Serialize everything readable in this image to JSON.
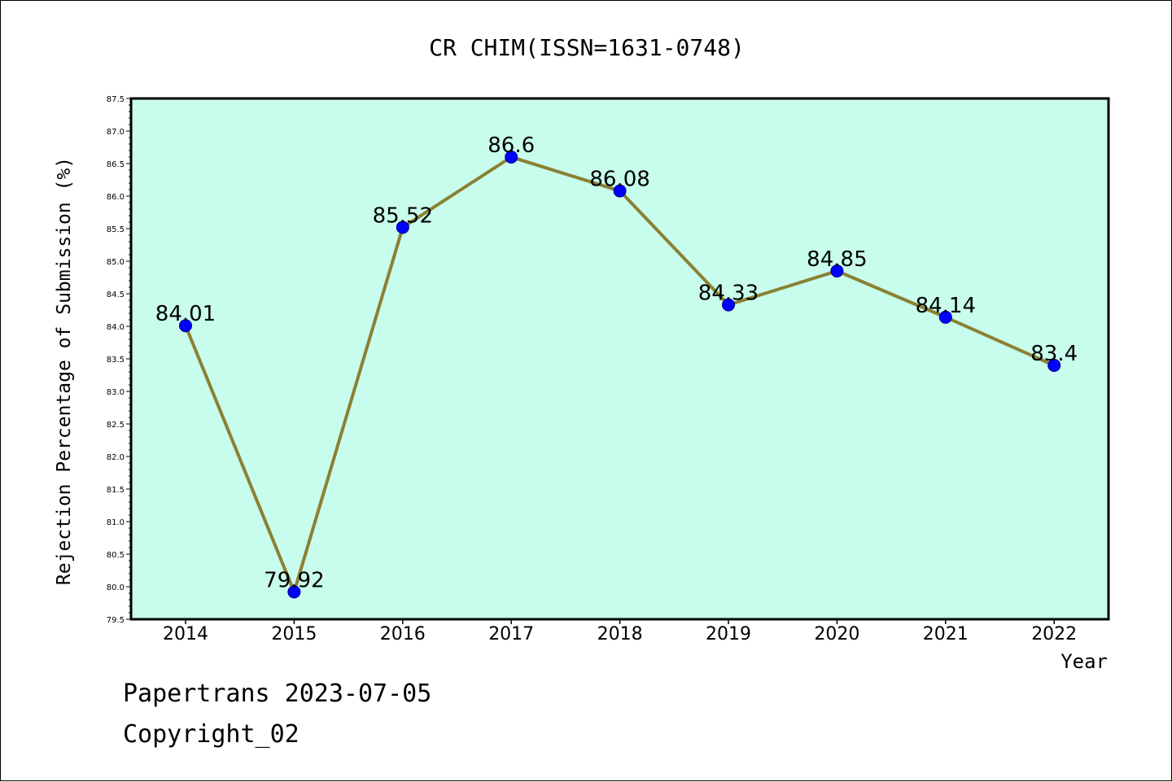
{
  "chart_data": {
    "type": "line",
    "title": "CR CHIM(ISSN=1631-0748)",
    "xlabel": "Year",
    "ylabel": "Rejection Percentage of Submission (%)",
    "categories": [
      "2014",
      "2015",
      "2016",
      "2017",
      "2018",
      "2019",
      "2020",
      "2021",
      "2022"
    ],
    "series": [
      {
        "values": [
          84.01,
          79.92,
          85.52,
          86.6,
          86.08,
          84.33,
          84.85,
          84.14,
          83.4
        ],
        "data_labels": [
          "84.01",
          "79.92",
          "85.52",
          "86.6",
          "86.08",
          "84.33",
          "84.85",
          "84.14",
          "83.4"
        ]
      }
    ],
    "ylim": [
      79.5,
      87.5
    ],
    "y_ticks": [
      "79.5",
      "80.0",
      "80.5",
      "81.0",
      "81.5",
      "82.0",
      "82.5",
      "83.0",
      "83.5",
      "84.0",
      "84.5",
      "85.0",
      "85.5",
      "86.0",
      "86.5",
      "87.0",
      "87.5"
    ],
    "grid": false,
    "colors": {
      "plot_background": "#c8fcec",
      "line": "#8b8033",
      "marker": "#0000ff",
      "marker_edge": "#00008b"
    }
  },
  "footer": {
    "line1": "Papertrans 2023-07-05",
    "line2": "Copyright_02"
  }
}
